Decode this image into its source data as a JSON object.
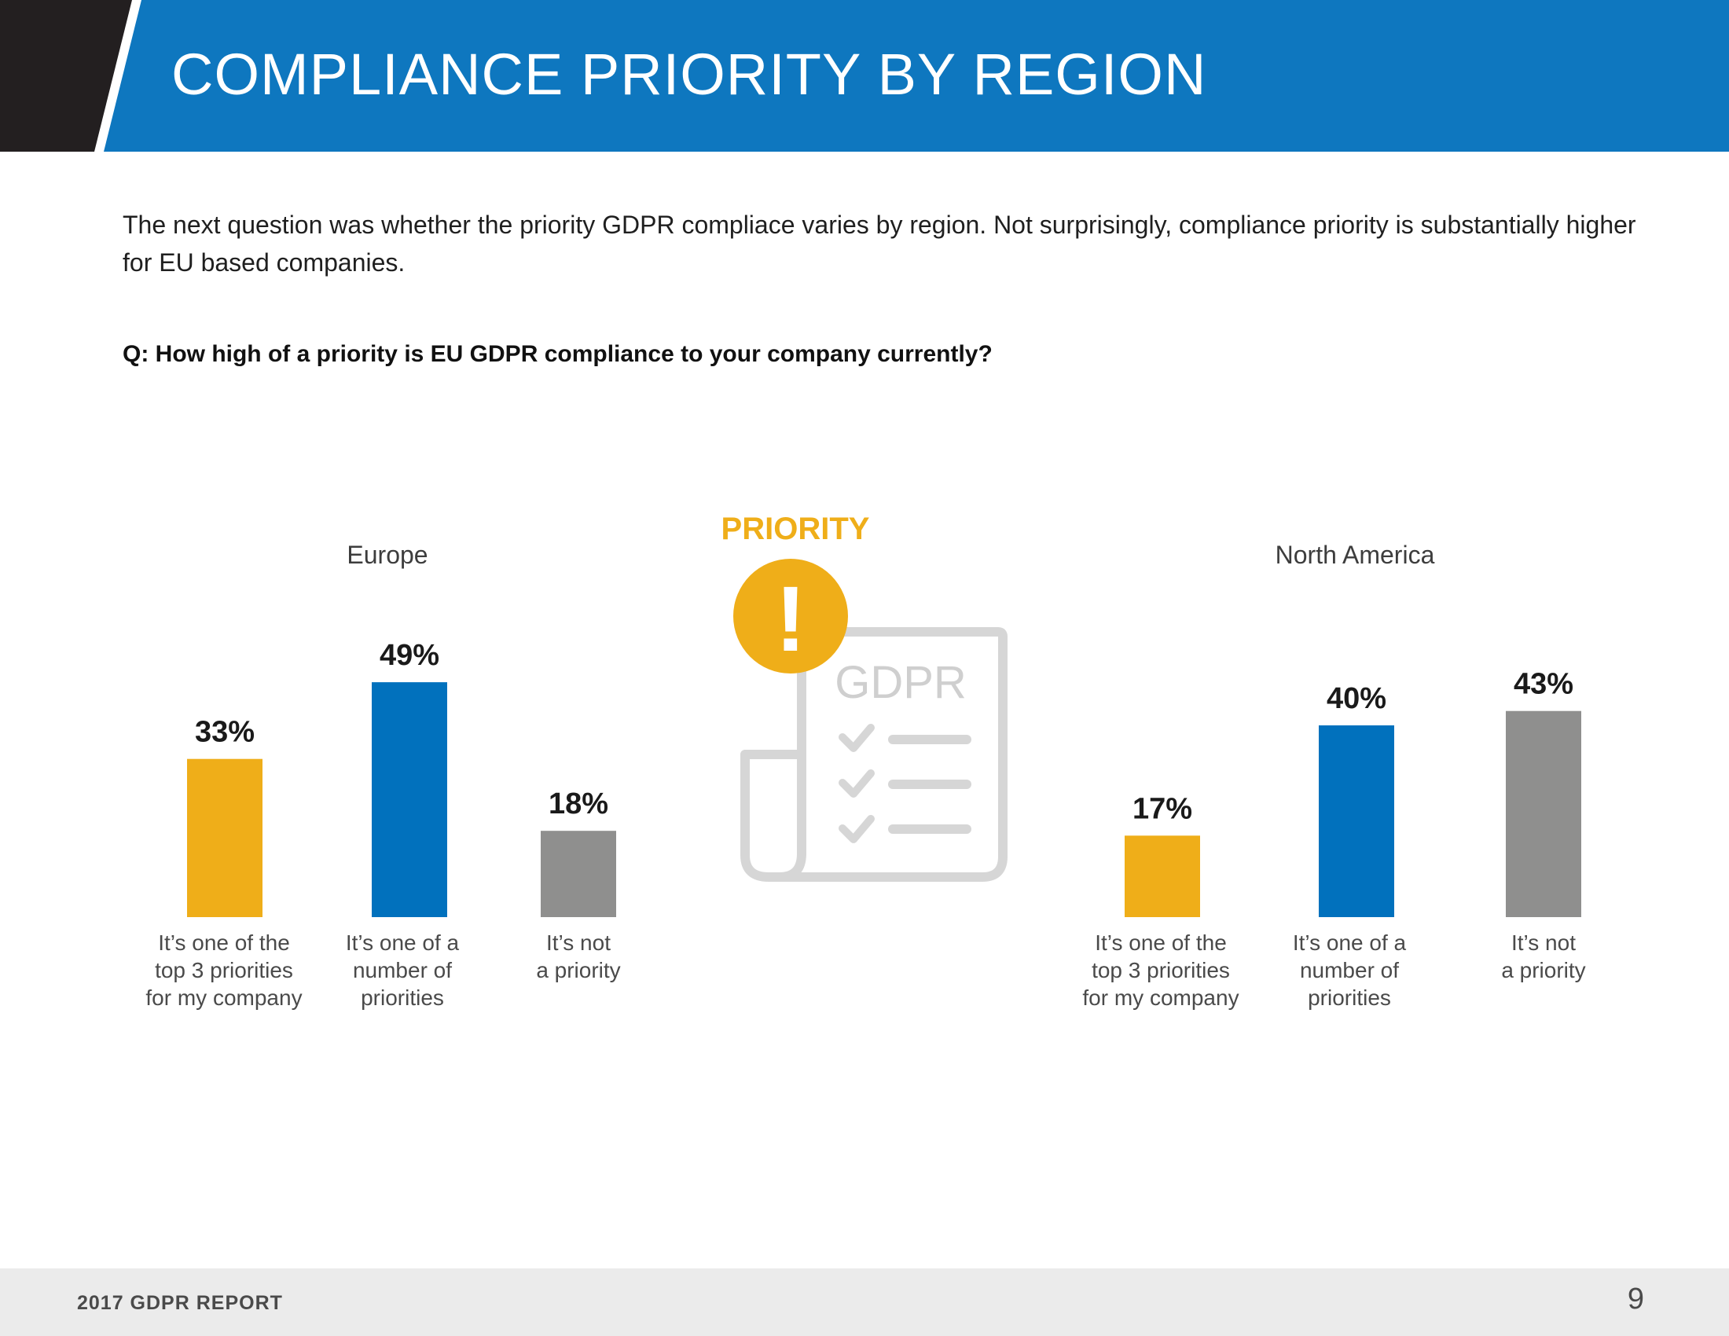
{
  "header": {
    "title": "COMPLIANCE PRIORITY BY REGION"
  },
  "intro": "The next question was whether the priority GDPR compliace varies by region. Not surprisingly, compliance priority is substantially higher for EU based companies.",
  "question": "Q: How high of a priority is EU GDPR compliance to your company currently?",
  "infographic": {
    "label": "PRIORITY",
    "doc_text": "GDPR",
    "alert_symbol": "!"
  },
  "colors": {
    "header_blue": "#0e77bf",
    "header_dark": "#231f20",
    "yellow": "#efae19",
    "blue": "#0171bd",
    "gray": "#8f8f8e"
  },
  "chart_data": [
    {
      "type": "bar",
      "title": "Europe",
      "categories": [
        [
          "It’s one of the",
          "top 3 priorities",
          "for my company"
        ],
        [
          "It’s one of a",
          "number of",
          "priorities"
        ],
        [
          "It’s not",
          "a priority"
        ]
      ],
      "values": [
        33,
        49,
        18
      ],
      "value_labels": [
        "33%",
        "49%",
        "18%"
      ],
      "unit": "%"
    },
    {
      "type": "bar",
      "title": "North America",
      "categories": [
        [
          "It’s one of the",
          "top 3 priorities",
          "for my company"
        ],
        [
          "It’s one of a",
          "number of",
          "priorities"
        ],
        [
          "It’s not",
          "a priority"
        ]
      ],
      "values": [
        17,
        40,
        43
      ],
      "value_labels": [
        "17%",
        "40%",
        "43%"
      ],
      "unit": "%"
    }
  ],
  "footer": {
    "report": "2017 GDPR REPORT",
    "page": "9"
  }
}
